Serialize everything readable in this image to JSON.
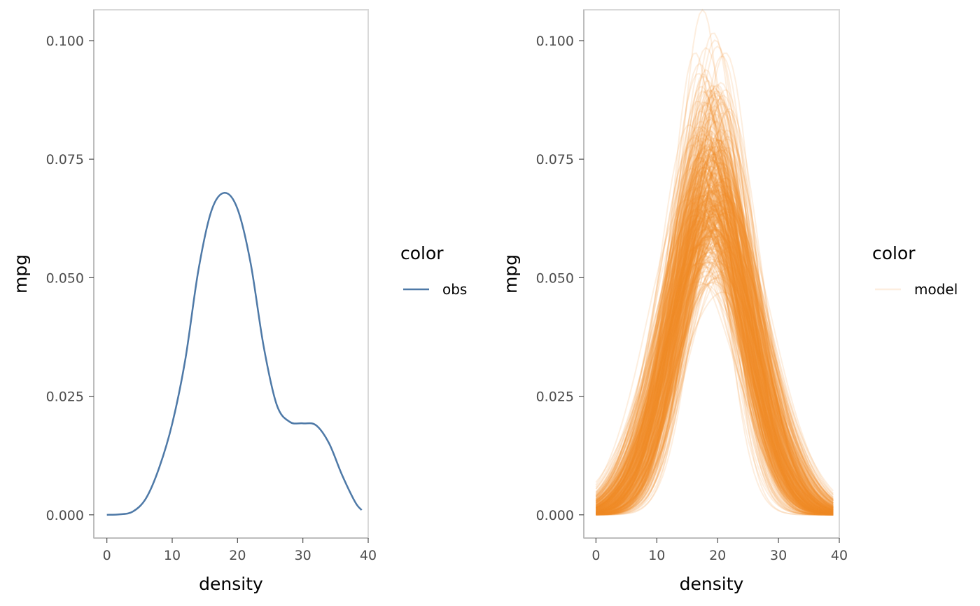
{
  "chart_data": [
    {
      "type": "line",
      "xlabel": "density",
      "ylabel": "mpg",
      "xlim": [
        -2,
        40
      ],
      "ylim": [
        -0.0049,
        0.1065
      ],
      "x_ticks": [
        0,
        10,
        20,
        30,
        40
      ],
      "y_ticks": [
        0.0,
        0.025,
        0.05,
        0.075,
        0.1
      ],
      "x_tick_labels": [
        "0",
        "10",
        "20",
        "30",
        "40"
      ],
      "y_tick_labels": [
        "0.000",
        "0.025",
        "0.050",
        "0.075",
        "0.100"
      ],
      "grid": false,
      "legend": {
        "title": "color",
        "placement": "right",
        "entries": [
          "obs"
        ]
      },
      "series": [
        {
          "name": "obs",
          "color": "#4e79a7",
          "x": [
            0,
            2,
            4,
            6,
            8,
            10,
            12,
            14,
            16,
            18,
            20,
            22,
            24,
            26,
            28,
            30,
            32,
            34,
            36,
            38,
            39
          ],
          "y": [
            0.0,
            0.0001,
            0.0007,
            0.0035,
            0.0099,
            0.0192,
            0.0327,
            0.0515,
            0.0641,
            0.0679,
            0.0645,
            0.0531,
            0.0355,
            0.0232,
            0.0196,
            0.0193,
            0.0189,
            0.0151,
            0.0084,
            0.0027,
            0.001
          ]
        }
      ]
    },
    {
      "type": "line",
      "xlabel": "density",
      "ylabel": "mpg",
      "xlim": [
        -2,
        40
      ],
      "ylim": [
        -0.0049,
        0.1065
      ],
      "x_ticks": [
        0,
        10,
        20,
        30,
        40
      ],
      "y_ticks": [
        0.0,
        0.025,
        0.05,
        0.075,
        0.1
      ],
      "x_tick_labels": [
        "0",
        "10",
        "20",
        "30",
        "40"
      ],
      "y_tick_labels": [
        "0.000",
        "0.025",
        "0.050",
        "0.075",
        "0.100"
      ],
      "grid": false,
      "legend": {
        "title": "color",
        "placement": "right",
        "entries": [
          "model"
        ]
      },
      "series_style": {
        "name": "model",
        "color": "#f28e2b",
        "opacity": 0.15,
        "count": 400
      },
      "x": [
        0,
        39
      ],
      "peak_center_range": [
        14.5,
        23.5
      ],
      "peak_height_range": [
        0.04,
        0.1015
      ],
      "peak_sd_range": [
        3.9,
        8.8
      ]
    }
  ]
}
